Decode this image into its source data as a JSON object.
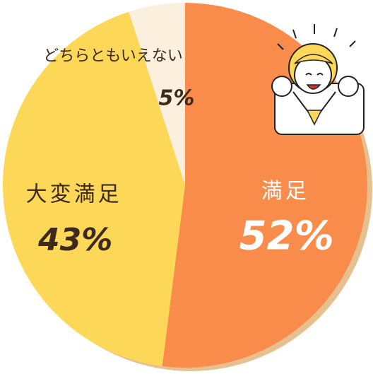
{
  "chart_data": {
    "type": "pie",
    "categories": [
      "満足",
      "大変満足",
      "どちらともいえない"
    ],
    "values": [
      52,
      43,
      5
    ],
    "value_labels": [
      "52%",
      "43%",
      "5%"
    ],
    "colors": [
      "#f98c4a",
      "#fdd757",
      "#fbf0de"
    ],
    "label_colors": [
      "#ffffff",
      "#3e2a1a",
      "#3e2a1a"
    ]
  }
}
